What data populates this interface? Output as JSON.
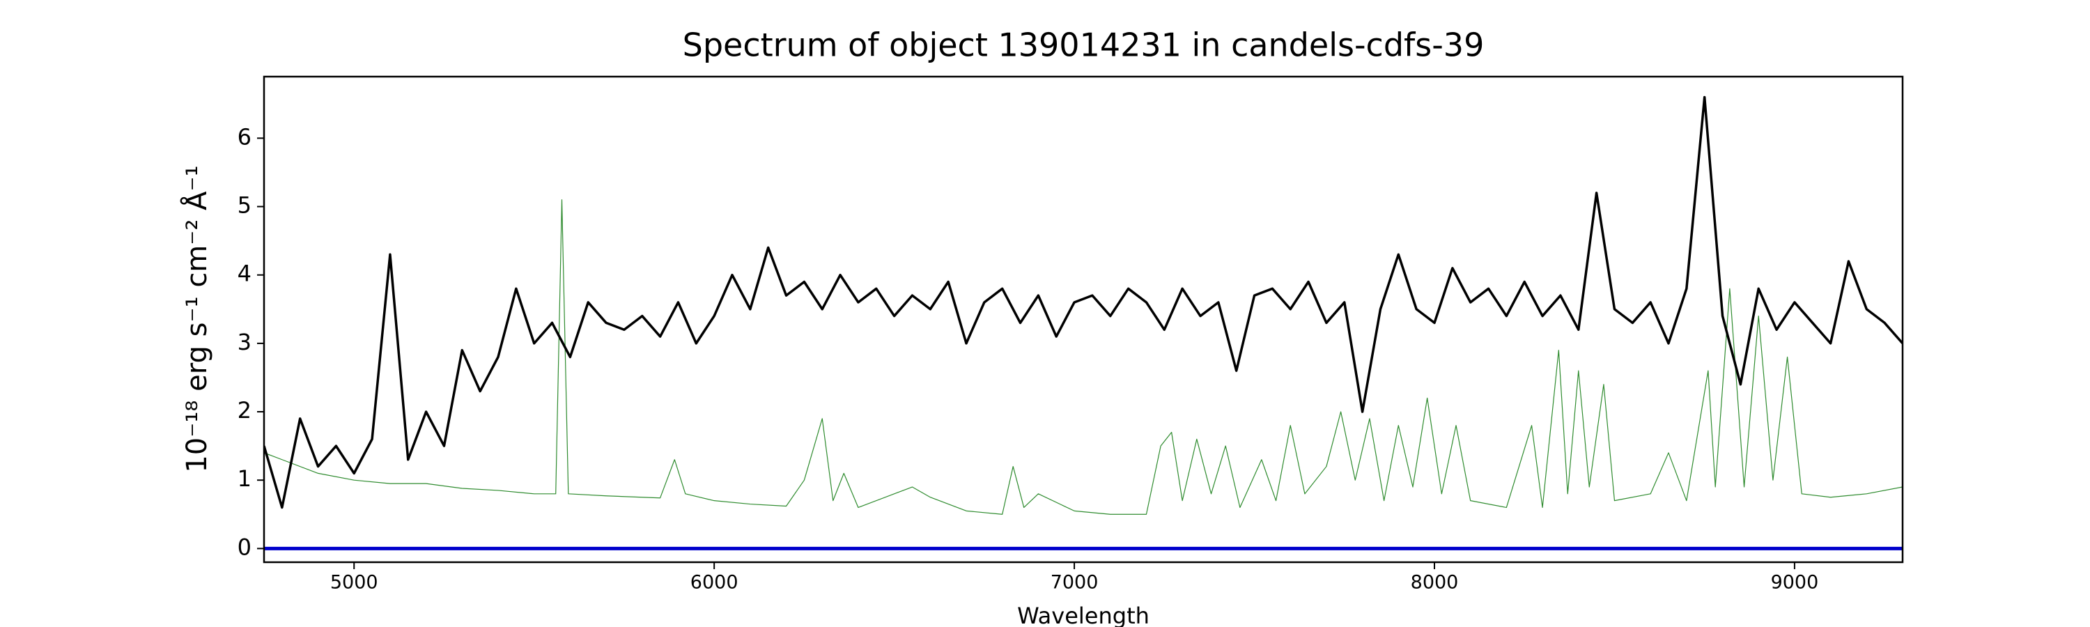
{
  "chart_data": {
    "type": "line",
    "title": "Spectrum of object 139014231 in candels-cdfs-39",
    "xlabel": "Wavelength",
    "ylabel": "10⁻¹⁸ erg s⁻¹ cm⁻² Å⁻¹",
    "xlim": [
      4750,
      9300
    ],
    "ylim": [
      -0.2,
      6.9
    ],
    "xticks": [
      5000,
      6000,
      7000,
      8000,
      9000
    ],
    "yticks": [
      0,
      1,
      2,
      3,
      4,
      5,
      6
    ],
    "series": [
      {
        "color": "#2e8b2e",
        "linewidth": 1.2,
        "x": [
          4750,
          4800,
          4900,
          5000,
          5100,
          5200,
          5300,
          5400,
          5500,
          5560,
          5577,
          5595,
          5700,
          5850,
          5890,
          5920,
          6000,
          6100,
          6200,
          6250,
          6300,
          6330,
          6360,
          6400,
          6500,
          6550,
          6600,
          6700,
          6800,
          6830,
          6860,
          6900,
          7000,
          7100,
          7200,
          7240,
          7270,
          7300,
          7340,
          7380,
          7420,
          7460,
          7520,
          7560,
          7600,
          7640,
          7700,
          7740,
          7780,
          7820,
          7860,
          7900,
          7940,
          7980,
          8020,
          8060,
          8100,
          8200,
          8270,
          8300,
          8345,
          8370,
          8400,
          8430,
          8470,
          8500,
          8600,
          8650,
          8700,
          8760,
          8780,
          8820,
          8860,
          8900,
          8940,
          8980,
          9020,
          9100,
          9200,
          9300
        ],
        "values": [
          1.4,
          1.3,
          1.1,
          1.0,
          0.95,
          0.95,
          0.88,
          0.85,
          0.8,
          0.8,
          5.1,
          0.8,
          0.77,
          0.74,
          1.3,
          0.8,
          0.7,
          0.65,
          0.62,
          1.0,
          1.9,
          0.7,
          1.1,
          0.6,
          0.8,
          0.9,
          0.75,
          0.55,
          0.5,
          1.2,
          0.6,
          0.8,
          0.55,
          0.5,
          0.5,
          1.5,
          1.7,
          0.7,
          1.6,
          0.8,
          1.5,
          0.6,
          1.3,
          0.7,
          1.8,
          0.8,
          1.2,
          2.0,
          1.0,
          1.9,
          0.7,
          1.8,
          0.9,
          2.2,
          0.8,
          1.8,
          0.7,
          0.6,
          1.8,
          0.6,
          2.9,
          0.8,
          2.6,
          0.9,
          2.4,
          0.7,
          0.8,
          1.4,
          0.7,
          2.6,
          0.9,
          3.8,
          0.9,
          3.4,
          1.0,
          2.8,
          0.8,
          0.75,
          0.8,
          0.9
        ]
      },
      {
        "color": "#000000",
        "linewidth": 3.5,
        "x": [
          4750,
          4800,
          4850,
          4900,
          4950,
          5000,
          5050,
          5100,
          5150,
          5200,
          5250,
          5300,
          5350,
          5400,
          5450,
          5500,
          5550,
          5600,
          5650,
          5700,
          5750,
          5800,
          5850,
          5900,
          5950,
          6000,
          6050,
          6100,
          6150,
          6200,
          6250,
          6300,
          6350,
          6400,
          6450,
          6500,
          6550,
          6600,
          6650,
          6700,
          6750,
          6800,
          6850,
          6900,
          6950,
          7000,
          7050,
          7100,
          7150,
          7200,
          7250,
          7300,
          7350,
          7400,
          7450,
          7500,
          7550,
          7600,
          7650,
          7700,
          7750,
          7800,
          7850,
          7900,
          7950,
          8000,
          8050,
          8100,
          8150,
          8200,
          8250,
          8300,
          8350,
          8400,
          8450,
          8500,
          8550,
          8600,
          8650,
          8700,
          8750,
          8800,
          8850,
          8900,
          8950,
          9000,
          9050,
          9100,
          9150,
          9200,
          9250,
          9300
        ],
        "values": [
          1.5,
          0.6,
          1.9,
          1.2,
          1.5,
          1.1,
          1.6,
          4.3,
          1.3,
          2.0,
          1.5,
          2.9,
          2.3,
          2.8,
          3.8,
          3.0,
          3.3,
          2.8,
          3.6,
          3.3,
          3.2,
          3.4,
          3.1,
          3.6,
          3.0,
          3.4,
          4.0,
          3.5,
          4.4,
          3.7,
          3.9,
          3.5,
          4.0,
          3.6,
          3.8,
          3.4,
          3.7,
          3.5,
          3.9,
          3.0,
          3.6,
          3.8,
          3.3,
          3.7,
          3.1,
          3.6,
          3.7,
          3.4,
          3.8,
          3.6,
          3.2,
          3.8,
          3.4,
          3.6,
          2.6,
          3.7,
          3.8,
          3.5,
          3.9,
          3.3,
          3.6,
          2.0,
          3.5,
          4.3,
          3.5,
          3.3,
          4.1,
          3.6,
          3.8,
          3.4,
          3.9,
          3.4,
          3.7,
          3.2,
          5.2,
          3.5,
          3.3,
          3.6,
          3.0,
          3.8,
          6.6,
          3.4,
          2.4,
          3.8,
          3.2,
          3.6,
          3.3,
          3.0,
          4.2,
          3.5,
          3.3,
          3.0
        ]
      },
      {
        "color": "#0000cc",
        "linewidth": 5,
        "x": [
          4750,
          9300
        ],
        "values": [
          0,
          0
        ]
      }
    ]
  }
}
